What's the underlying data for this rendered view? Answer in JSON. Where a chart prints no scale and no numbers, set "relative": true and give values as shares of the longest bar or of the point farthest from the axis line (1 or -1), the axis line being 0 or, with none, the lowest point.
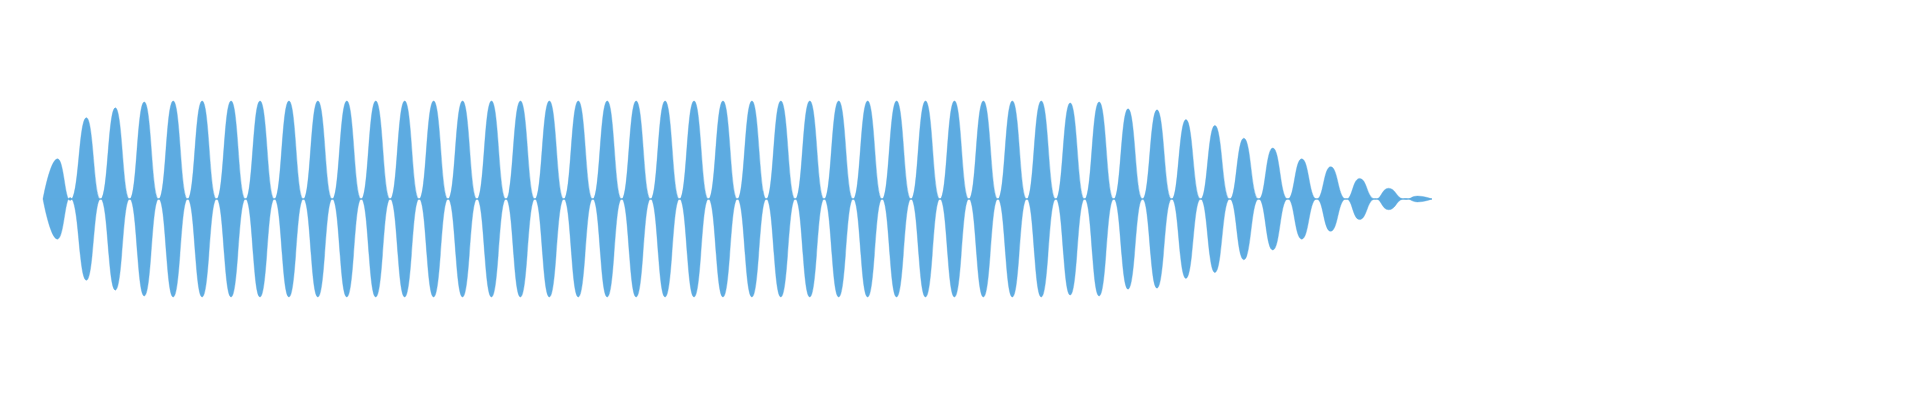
{
  "chart_data": {
    "type": "area",
    "relative": true,
    "categories": [
      null,
      null,
      null,
      null,
      null,
      null,
      null,
      null,
      null,
      null,
      null,
      null,
      null,
      null,
      null,
      null,
      null,
      null,
      null,
      null,
      null,
      null,
      null,
      null,
      null,
      null,
      null,
      null,
      null,
      null,
      null,
      null,
      null,
      null,
      null,
      null,
      null,
      null,
      null,
      null,
      null,
      null,
      null,
      null,
      null,
      null,
      null,
      null,
      null,
      null,
      null,
      null,
      null,
      null,
      null,
      null,
      null,
      null,
      null,
      null,
      null,
      null,
      null,
      null,
      null,
      null,
      null,
      null,
      null,
      null,
      null,
      null,
      null,
      null,
      null,
      null,
      null,
      null,
      null,
      null,
      null,
      null,
      null,
      null,
      null,
      null,
      null,
      null,
      null,
      null,
      null,
      null,
      null,
      null,
      null,
      null,
      null
    ],
    "series": [
      {
        "color": "#5dabe1",
        "values": [
          0,
          0.41,
          0,
          0.83,
          0,
          0.93,
          0,
          0.99,
          0,
          1,
          0,
          1,
          0,
          1,
          0,
          1,
          0,
          1,
          0,
          1,
          0,
          1,
          0,
          1,
          0,
          1,
          0,
          1,
          0,
          1,
          0,
          1,
          0,
          1,
          0,
          1,
          0,
          1,
          0,
          1,
          0,
          1,
          0,
          1,
          0,
          1,
          0,
          1,
          0,
          1,
          0,
          1,
          0,
          1,
          0,
          1,
          0,
          1,
          0,
          1,
          0,
          1,
          0,
          1,
          0,
          1,
          0,
          1,
          0,
          1,
          0,
          0.98,
          0,
          0.99,
          0,
          0.92,
          0,
          0.91,
          0,
          0.81,
          0,
          0.75,
          0,
          0.62,
          0,
          0.52,
          0,
          0.41,
          0,
          0.33,
          0,
          0.21,
          0,
          0.11,
          0,
          0.03,
          0
        ]
      },
      {
        "color": "#5dabe1",
        "values": [
          0,
          -0.41,
          0,
          -0.83,
          0,
          -0.93,
          0,
          -0.99,
          0,
          -1,
          0,
          -1,
          0,
          -1,
          0,
          -1,
          0,
          -1,
          0,
          -1,
          0,
          -1,
          0,
          -1,
          0,
          -1,
          0,
          -1,
          0,
          -1,
          0,
          -1,
          0,
          -1,
          0,
          -1,
          0,
          -1,
          0,
          -1,
          0,
          -1,
          0,
          -1,
          0,
          -1,
          0,
          -1,
          0,
          -1,
          0,
          -1,
          0,
          -1,
          0,
          -1,
          0,
          -1,
          0,
          -1,
          0,
          -1,
          0,
          -1,
          0,
          -1,
          0,
          -1,
          0,
          -1,
          0,
          -0.98,
          0,
          -0.99,
          0,
          -0.92,
          0,
          -0.91,
          0,
          -0.81,
          0,
          -0.75,
          0,
          -0.62,
          0,
          -0.52,
          0,
          -0.41,
          0,
          -0.33,
          0,
          -0.21,
          0,
          -0.11,
          0,
          -0.03,
          0
        ]
      }
    ]
  }
}
